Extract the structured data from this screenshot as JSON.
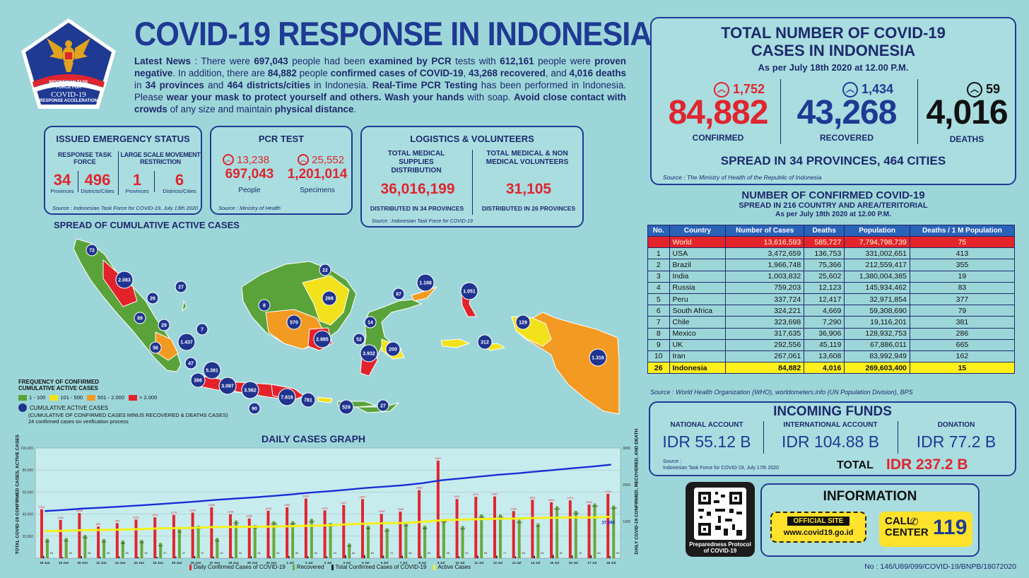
{
  "header": {
    "title": "COVID-19 RESPONSE IN INDONESIA",
    "news_lead": "Latest News",
    "news_html": ": There were <b>697,043</b> people had been <b>examined by PCR</b> tests with <b>612,161</b> people were <b>proven negative</b>. In addition, there are <b>84,882</b> people <b>confirmed cases of COVID-19</b>, <b>43,268 recovered</b>, and <b>4,016 deaths</b> in <b>34 provinces</b> and <b>464 districts/cities</b> in Indonesia. <b>Real-Time PCR Testing</b> has been performed in Indonesia. Please <b>wear your mask to protect yourself and others. Wash your hands</b> with soap. <b>Avoid close contact with crowds</b> of any size and maintain <b>physical distance</b>."
  },
  "logo": {
    "line1": "INDONESIAN TASK",
    "line2": "FORCE FOR",
    "line3": "COVID-19",
    "line4": "RESPONSE ACCELERATION"
  },
  "emergency": {
    "title": "ISSUED EMERGENCY STATUS",
    "col1_label": "RESPONSE TASK FORCE",
    "col2_label": "LARGE SCALE MOVEMENT RESTRICTION",
    "rtf_provinces": "34",
    "rtf_districts": "496",
    "lsr_provinces": "1",
    "lsr_districts": "6",
    "provinces_label": "Provinces",
    "districts_label": "Districts/Cities",
    "source": "Source : Indonesian Task Force for COVID-19, July 13th 2020"
  },
  "pcr": {
    "title": "PCR TEST",
    "people_delta": "13,238",
    "people": "697,043",
    "people_label": "People",
    "specimens_delta": "25,552",
    "specimens": "1,201,014",
    "specimens_label": "Specimens",
    "source": "Source : Ministry of Health"
  },
  "logistics": {
    "title": "LOGISTICS & VOLUNTEERS",
    "col1_label": "TOTAL MEDICAL SUPPLIES DISTRIBUTION",
    "col1_value": "36,016,199",
    "col1_note": "DISTRIBUTED IN 34 PROVINCES",
    "col2_label": "TOTAL MEDICAL & NON MEDICAL VOLUNTEERS",
    "col2_value": "31,105",
    "col2_note": "DISTRIBUTED IN 26 PROVINCES",
    "source": "Source : Indonesian Task Force for COVID-19"
  },
  "totals": {
    "title_line1": "TOTAL NUMBER OF COVID-19",
    "title_line2": "CASES IN INDONESIA",
    "date": "As per July 18th 2020 at 12.00 P.M.",
    "confirmed_delta": "1,752",
    "confirmed": "84,882",
    "confirmed_label": "CONFIRMED",
    "recovered_delta": "1,434",
    "recovered": "43,268",
    "recovered_label": "RECOVERED",
    "deaths_delta": "59",
    "deaths": "4,016",
    "deaths_label": "DEATHS",
    "spread": "SPREAD IN 34 PROVINCES, 464 CITIES",
    "source": "Source : The Ministry of Health of the Republic of Indonesia"
  },
  "world": {
    "title": "NUMBER OF CONFIRMED COVID-19",
    "subtitle": "SPREAD IN 216 COUNTRY AND AREA/TERITORIAL",
    "date": "As per July 18th 2020 at 12.00 P.M.",
    "headers": [
      "No.",
      "Country",
      "Number of Cases",
      "Deaths",
      "Population",
      "Deaths / 1 M Population"
    ],
    "rows": [
      [
        "",
        "World",
        "13,616,593",
        "585,727",
        "7,794,798,739",
        "75"
      ],
      [
        "1",
        "USA",
        "3,472,659",
        "136,753",
        "331,002,651",
        "413"
      ],
      [
        "2",
        "Brazil",
        "1,966,748",
        "75,366",
        "212,559,417",
        "355"
      ],
      [
        "3",
        "India",
        "1,003,832",
        "25,602",
        "1,380,004,385",
        "19"
      ],
      [
        "4",
        "Russia",
        "759,203",
        "12,123",
        "145,934,462",
        "83"
      ],
      [
        "5",
        "Peru",
        "337,724",
        "12,417",
        "32,971,854",
        "377"
      ],
      [
        "6",
        "South Africa",
        "324,221",
        "4,669",
        "59,308,690",
        "79"
      ],
      [
        "7",
        "Chile",
        "323,698",
        "7,290",
        "19,116,201",
        "381"
      ],
      [
        "8",
        "Mexico",
        "317,635",
        "36,906",
        "128,932,753",
        "286"
      ],
      [
        "9",
        "UK",
        "292,556",
        "45,119",
        "67,886,011",
        "665"
      ],
      [
        "10",
        "Iran",
        "267,061",
        "13,608",
        "83,992,949",
        "162"
      ],
      [
        "26",
        "Indonesia",
        "84,882",
        "4,016",
        "269,603,400",
        "15"
      ]
    ],
    "source": "Source : World Health Organization (WHO), worldometers.info (UN Population Division), BPS"
  },
  "funds": {
    "title": "INCOMING FUNDS",
    "national_label": "NATIONAL ACCOUNT",
    "national_value": "IDR 55.12 B",
    "international_label": "INTERNATIONAL ACCOUNT",
    "international_value": "IDR 104.88 B",
    "donation_label": "DONATION",
    "donation_value": "IDR 77.2 B",
    "source_line1": "Source :",
    "source_line2": "Indonesian Task Force for COVID-19, July 17th 2020",
    "total_label": "TOTAL",
    "total_value": "IDR 237.2 B"
  },
  "info": {
    "title": "INFORMATION",
    "qr_caption": "Preparedness Protocol of COVID-19",
    "official_site_label": "OFFICIAL SITE",
    "site_url": "www.covid19.go.id",
    "call_label_1": "CALL",
    "call_label_2": "CENTER",
    "call_number": "119"
  },
  "map": {
    "title": "SPREAD OF CUMULATIVE ACTIVE CASES",
    "legend_title_1": "FREQUENCY OF CONFIRMED",
    "legend_title_2": "CUMULATIVE ACTIVE CASES",
    "legend_items": [
      {
        "label": "1 - 100",
        "color": "#5aa33a"
      },
      {
        "label": "101 - 500",
        "color": "#f2e21b"
      },
      {
        "label": "501 - 2.000",
        "color": "#f39a23"
      },
      {
        "label": "> 2.000",
        "color": "#e2232b"
      }
    ],
    "circle_label": "CUMULATIVE ACTIVE CASES",
    "circle_note": "(CUMULATIVE OF CONFIRMED CASES MINUS RECOVERED & DEATHS CASES)",
    "verification_note": "24 confirmed cases on verification process",
    "circles": [
      "72",
      "2.083",
      "27",
      "26",
      "89",
      "29",
      "7",
      "56",
      "1.437",
      "47",
      "5.391",
      "386",
      "3.097",
      "3.562",
      "90",
      "7.816",
      "781",
      "8",
      "570",
      "22",
      "266",
      "2.885",
      "97",
      "1.168",
      "1.051",
      "14",
      "52",
      "3.932",
      "200",
      "529",
      "27",
      "312",
      "129",
      "1.316"
    ]
  },
  "graph": {
    "title": "DAILY CASES GRAPH",
    "y_left_label": "TOTAL COVID-19 CONFIRMED CASES, ACTIVE CASES",
    "y_right_label": "DAILY COVID-19 CONFIRMED, RECOVERED, AND DEATH",
    "y_left_ticks": [
      "100,000",
      "80,000",
      "60,000",
      "40,000",
      "20,000"
    ],
    "y_right_ticks": [
      "3000",
      "2000",
      "1000"
    ],
    "legend": [
      "Daily Confirmed Cases of COVID-19",
      "Recovered",
      "Total Confirmed Cases of COVID-19",
      "Active Cases"
    ],
    "last_active_label": "37,598",
    "colors": {
      "confirmed": "#e0252f",
      "recovered": "#6aa83e",
      "total": "#1a2fd6",
      "active": "#f6f019",
      "deaths": "#222222"
    }
  },
  "chart_data": {
    "type": "bar",
    "title": "DAILY CASES GRAPH",
    "categories": [
      "18 Jun",
      "19 Jun",
      "20 Jun",
      "21 Jun",
      "22 Jun",
      "23 Jun",
      "24 Jun",
      "25 Jun",
      "26 Jun",
      "27 Jun",
      "28 Jun",
      "29 Jun",
      "30 Jun",
      "1 Jul",
      "2 Jul",
      "3 Jul",
      "4 Jul",
      "5 Jul",
      "6 Jul",
      "7 Jul",
      "8 Jul",
      "9 Jul",
      "10 Jul",
      "11 Jul",
      "12 Jul",
      "13 Jul",
      "14 Jul",
      "15 Jul",
      "16 Jul",
      "17 Jul",
      "18 Jul"
    ],
    "ylabel": "TOTAL COVID-19 CONFIRMED CASES, ACTIVE CASES",
    "y2label": "DAILY COVID-19 CONFIRMED, RECOVERED, AND DEATH",
    "ylim": [
      0,
      100000
    ],
    "y2lim": [
      0,
      3000
    ],
    "series": [
      {
        "name": "Daily Confirmed Cases of COVID-19",
        "axis": "right",
        "values": [
          1331,
          1041,
          1226,
          862,
          954,
          1051,
          1113,
          1178,
          1240,
          1385,
          1198,
          1082,
          1293,
          1385,
          1624,
          1301,
          1447,
          1607,
          1209,
          1268,
          1853,
          2657,
          1611,
          1671,
          1681,
          1282,
          1591,
          1522,
          1574,
          1462,
          1752
        ]
      },
      {
        "name": "Recovered",
        "axis": "right",
        "values": [
          532,
          551,
          634,
          521,
          485,
          500,
          417,
          791,
          884,
          551,
          1027,
          904,
          1006,
          1006,
          1072,
          961,
          401,
          886,
          814,
          966,
          888,
          1066,
          878,
          1190,
          1190,
          1051,
          947,
          1414,
          1290,
          1489,
          1434
        ]
      },
      {
        "name": "Deaths",
        "axis": "right",
        "values": [
          63,
          33,
          56,
          35,
          50,
          35,
          37,
          47,
          57,
          42,
          34,
          51,
          51,
          59,
          53,
          49,
          82,
          82,
          70,
          68,
          50,
          58,
          52,
          66,
          71,
          50,
          64,
          87,
          76,
          84,
          59
        ]
      },
      {
        "name": "Total Confirmed Cases of COVID-19",
        "axis": "left",
        "type": "line",
        "values": [
          42762,
          43803,
          45029,
          45891,
          46845,
          47896,
          49009,
          50187,
          51427,
          52812,
          54010,
          55092,
          56385,
          57770,
          59394,
          60695,
          62142,
          63749,
          64958,
          66226,
          68079,
          70736,
          72347,
          74018,
          75699,
          76981,
          78572,
          80094,
          81668,
          83130,
          84882
        ]
      },
      {
        "name": "Active Cases",
        "axis": "left",
        "type": "line",
        "values": [
          24500,
          24900,
          25400,
          25650,
          26000,
          26400,
          27000,
          27300,
          27600,
          28300,
          28400,
          28500,
          28700,
          29000,
          29500,
          29800,
          30800,
          31400,
          31700,
          32000,
          32900,
          34400,
          35000,
          35400,
          35800,
          36000,
          36500,
          36700,
          37000,
          37000,
          37598
        ]
      }
    ]
  }
}
